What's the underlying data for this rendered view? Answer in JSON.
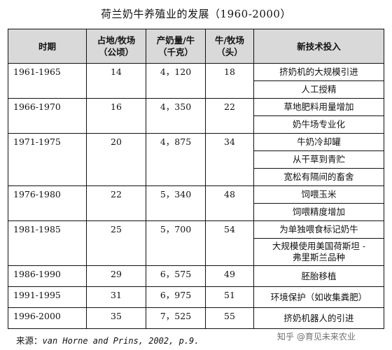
{
  "title": "荷兰奶牛养殖业的发展（1960-2000）",
  "table": {
    "headers": {
      "period": "时期",
      "land": [
        "占地/牧场",
        "（公顷）"
      ],
      "milk": [
        "产奶量/牛",
        "（千克）"
      ],
      "cows": [
        "牛/牧场",
        "（头）"
      ],
      "tech": "新技术投入"
    },
    "groups": [
      {
        "period": "1961-1965",
        "land": "14",
        "milk": "4，120",
        "cows": "18",
        "techs": [
          "挤奶机的大规模引进",
          "人工授精"
        ]
      },
      {
        "period": "1966-1970",
        "land": "16",
        "milk": "4，350",
        "cows": "22",
        "techs": [
          "草地肥料用量增加",
          "奶牛场专业化"
        ]
      },
      {
        "period": "1971-1975",
        "land": "20",
        "milk": "4，875",
        "cows": "34",
        "techs": [
          "牛奶冷却罐",
          "从干草到青贮",
          "宽松有隔间的畜舍"
        ]
      },
      {
        "period": "1976-1980",
        "land": "22",
        "milk": "5，340",
        "cows": "48",
        "techs": [
          "饲喂玉米",
          "饲喂精度增加"
        ]
      },
      {
        "period": "1981-1985",
        "land": "25",
        "milk": "5，700",
        "cows": "54",
        "techs": [
          "为单独喂食标记奶牛",
          "大规模使用美国荷斯坦 -\n弗里斯兰品种"
        ]
      },
      {
        "period": "1986-1990",
        "land": "29",
        "milk": "6，575",
        "cows": "49",
        "techs": [
          "胚胎移植"
        ]
      },
      {
        "period": "1991-1995",
        "land": "31",
        "milk": "6，975",
        "cows": "51",
        "techs": [
          "环境保护（如收集粪肥）"
        ]
      },
      {
        "period": "1996-2000",
        "land": "35",
        "milk": "7，525",
        "cows": "55",
        "techs": [
          "挤奶机器人的引进"
        ]
      }
    ]
  },
  "source": {
    "label": "来源：",
    "citation": "van Horne and Prins, 2002, p.9."
  },
  "watermark": "知乎 @育见未来农业"
}
